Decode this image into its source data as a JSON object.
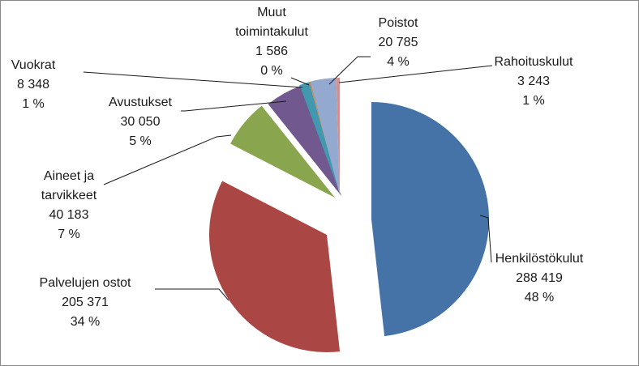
{
  "chart_data": {
    "type": "pie",
    "exploded": true,
    "legend": "none",
    "slices": [
      {
        "label": "Henkilöstökulut",
        "value_text": "288 419",
        "pct_text": "48 %",
        "value": 288419,
        "color": "#4572A7"
      },
      {
        "label": "Palvelujen ostot",
        "value_text": "205 371",
        "pct_text": "34 %",
        "value": 205371,
        "color": "#AA4643"
      },
      {
        "label": "Aineet ja tarvikkeet",
        "label_lines": [
          "Aineet ja",
          "tarvikkeet"
        ],
        "value_text": "40 183",
        "pct_text": "7 %",
        "value": 40183,
        "color": "#89A54E"
      },
      {
        "label": "Avustukset",
        "value_text": "30 050",
        "pct_text": "5 %",
        "value": 30050,
        "color": "#71588F"
      },
      {
        "label": "Vuokrat",
        "value_text": "8 348",
        "pct_text": "1 %",
        "value": 8348,
        "color": "#4198AF"
      },
      {
        "label": "Muut toimintakulut",
        "label_lines": [
          "Muut",
          "toimintakulut"
        ],
        "value_text": "1 586",
        "pct_text": "0 %",
        "value": 1586,
        "color": "#DB843D"
      },
      {
        "label": "Poistot",
        "value_text": "20 785",
        "pct_text": "4 %",
        "value": 20785,
        "color": "#93A9CF"
      },
      {
        "label": "Rahoituskulut",
        "value_text": "3 243",
        "pct_text": "1 %",
        "value": 3243,
        "color": "#D19392"
      }
    ]
  }
}
